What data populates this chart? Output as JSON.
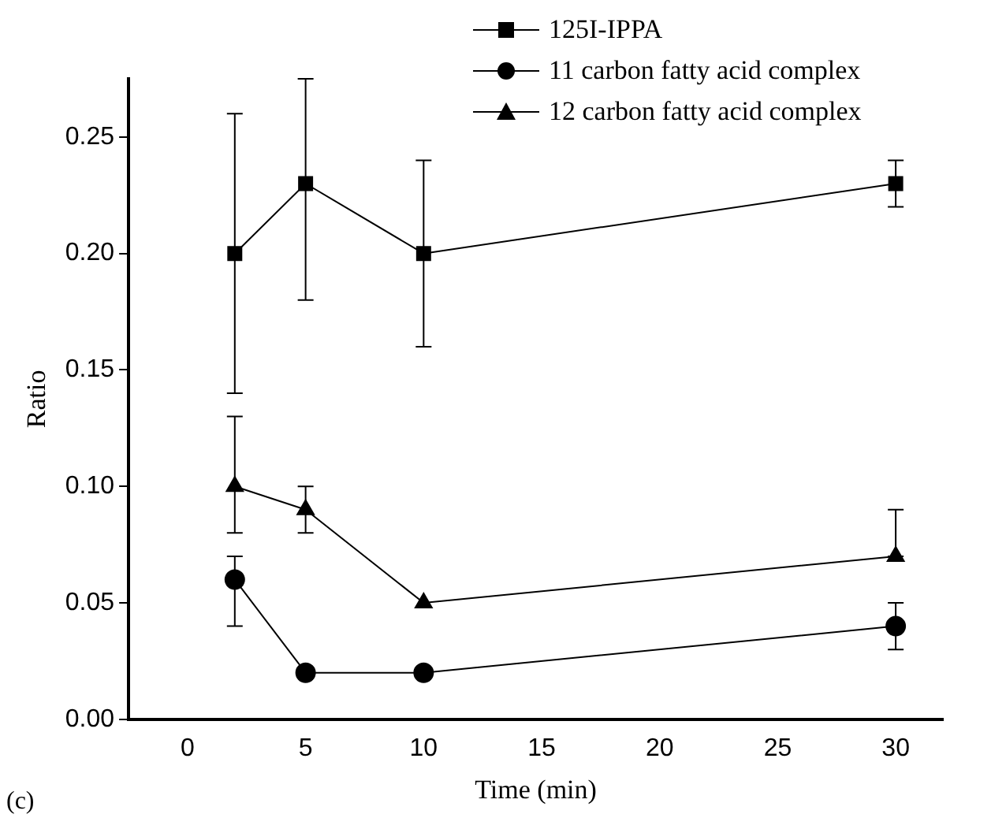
{
  "chart_data": {
    "type": "line",
    "xlabel": "Time (min)",
    "ylabel": "Ratio",
    "annotations": [
      "(c)"
    ],
    "x": [
      2,
      5,
      10,
      30
    ],
    "xlim": [
      -2.5,
      32
    ],
    "xticks": [
      0,
      5,
      10,
      15,
      20,
      25,
      30
    ],
    "ylim": [
      0,
      0.275
    ],
    "yticks": [
      {
        "value": 0,
        "label": "0.00"
      },
      0.05,
      {
        "value": 0.1,
        "label": "0.10"
      },
      0.15,
      {
        "value": 0.2,
        "label": "0.20"
      },
      0.25
    ],
    "grid": false,
    "legend": "top right",
    "line_style": "solid",
    "series": [
      {
        "name": "125I-IPPA",
        "color": "#000000",
        "marker": "square",
        "values": [
          0.2,
          0.23,
          0.2,
          0.23
        ],
        "errors": [
          [
            0.14,
            0.26
          ],
          [
            0.18,
            0.275
          ],
          [
            0.16,
            0.24
          ],
          [
            0.22,
            0.24
          ]
        ]
      },
      {
        "name": "11 carbon fatty acid complex",
        "color": "#000000",
        "marker": "circle",
        "values": [
          0.06,
          0.02,
          0.02,
          0.04
        ],
        "errors": [
          [
            0.04,
            0.07
          ],
          null,
          null,
          [
            0.03,
            0.05
          ]
        ]
      },
      {
        "name": "12 carbon fatty acid complex",
        "color": "#000000",
        "marker": "triangle",
        "values": [
          0.1,
          0.09,
          0.05,
          0.07
        ],
        "errors": [
          [
            0.08,
            0.13
          ],
          [
            0.08,
            0.1
          ],
          null,
          [
            0.07,
            0.09
          ]
        ]
      }
    ]
  }
}
